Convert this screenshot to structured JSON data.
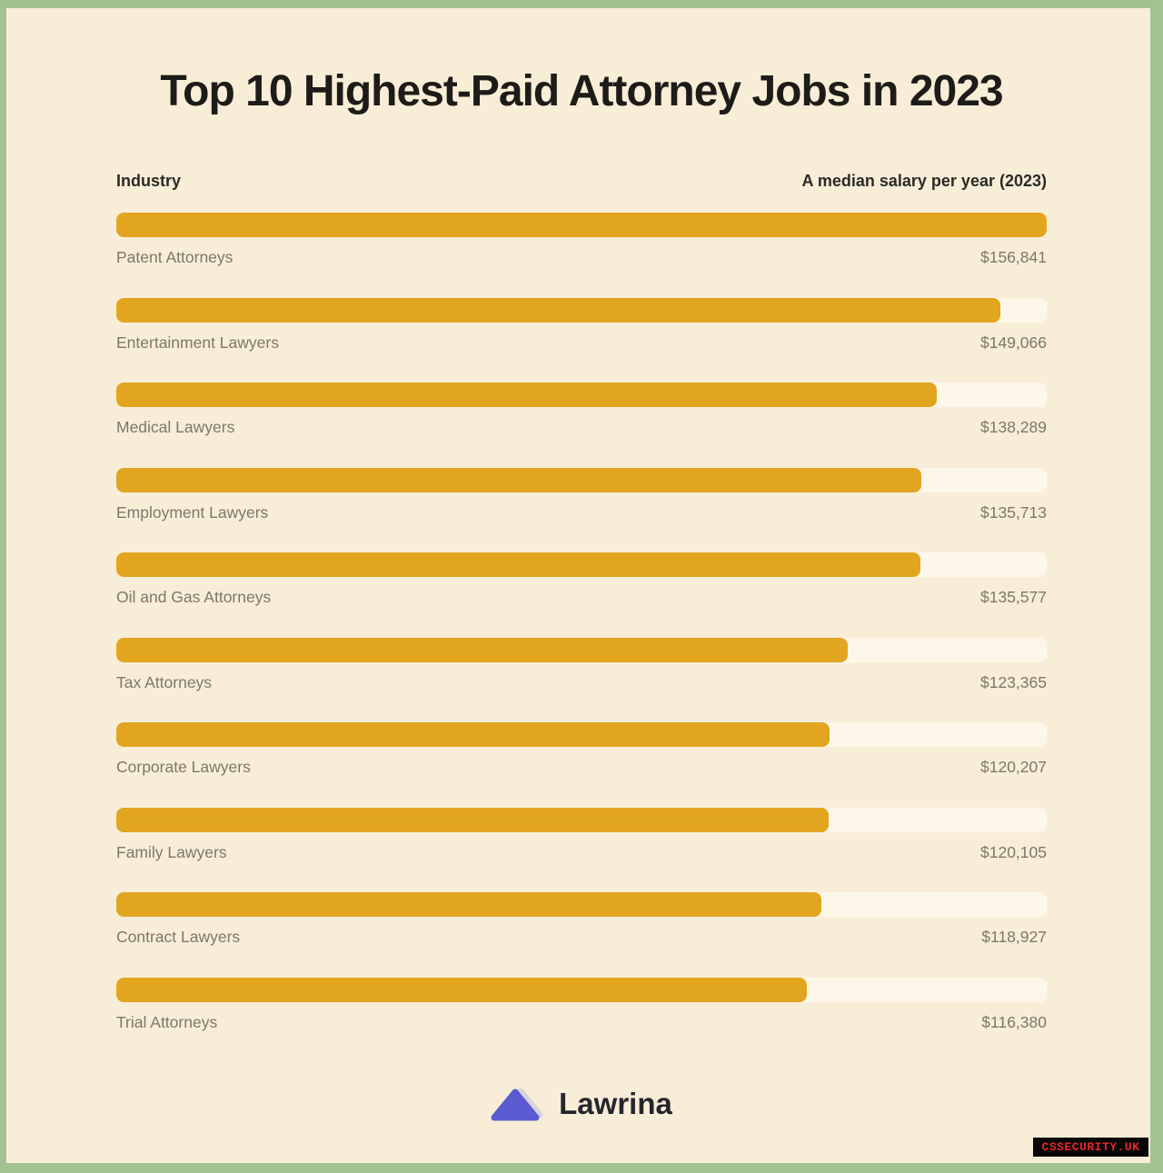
{
  "title": "Top 10 Highest-Paid Attorney Jobs in 2023",
  "columns": {
    "left": "Industry",
    "right": "A median salary per year (2023)"
  },
  "chart_data": {
    "type": "bar",
    "orientation": "horizontal",
    "title": "Top 10 Highest-Paid Attorney Jobs in 2023",
    "categories": [
      "Patent Attorneys",
      "Entertainment Lawyers",
      "Medical Lawyers",
      "Employment Lawyers",
      "Oil and Gas Attorneys",
      "Tax Attorneys",
      "Corporate Lawyers",
      "Family Lawyers",
      "Contract Lawyers",
      "Trial Attorneys"
    ],
    "values": [
      156841,
      149066,
      138289,
      135713,
      135577,
      123365,
      120207,
      120105,
      118927,
      116380
    ],
    "value_labels": [
      "$156,841",
      "$149,066",
      "$138,289",
      "$135,713",
      "$135,577",
      "$123,365",
      "$120,207",
      "$120,105",
      "$118,927",
      "$116,380"
    ],
    "xlabel": "A median salary per year (2023)",
    "ylabel": "Industry",
    "xlim": [
      0,
      156841
    ],
    "grid": false,
    "legend": false
  },
  "footer": {
    "brand": "Lawrina",
    "logo_icon": "triangle-icon",
    "logo_color": "#5a5ad2",
    "logo_shadow_color": "#d6d3dc"
  },
  "watermark": {
    "text": "CSSECURITY.UK"
  },
  "colors": {
    "frame": "#a3c292",
    "background": "#f8eed8",
    "title": "#1e1c18",
    "header": "#2b2a26",
    "label": "#7b776b",
    "bar": "#e2a51f",
    "track": "#fcf7e9",
    "watermark_bg": "#070707",
    "watermark_text": "#e8252a"
  }
}
